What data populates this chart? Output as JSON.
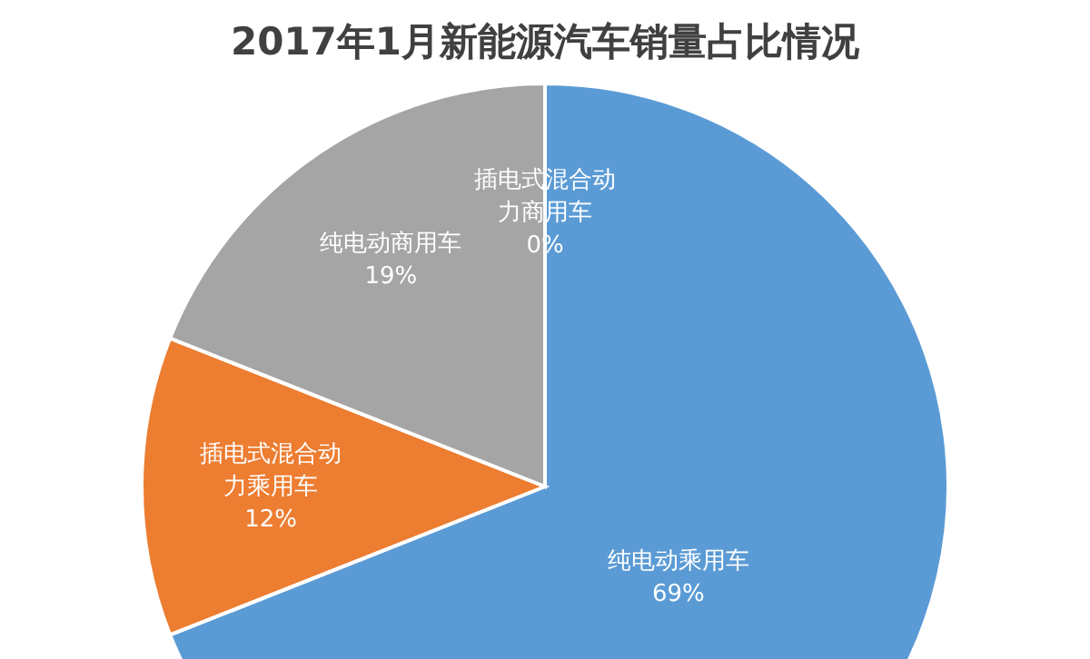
{
  "chart_data": {
    "type": "pie",
    "title": "2017年1月新能源汽车销量占比情况",
    "categories": [
      "纯电动乘用车",
      "插电式混合动力乘用车",
      "纯电动商用车",
      "插电式混合动力商用车"
    ],
    "values": [
      69,
      12,
      19,
      0
    ],
    "colors": [
      "#5b9bd5",
      "#ed7d31",
      "#a5a5a5",
      "#ffc000"
    ],
    "value_labels": [
      "69%",
      "12%",
      "19%",
      "0%"
    ]
  }
}
